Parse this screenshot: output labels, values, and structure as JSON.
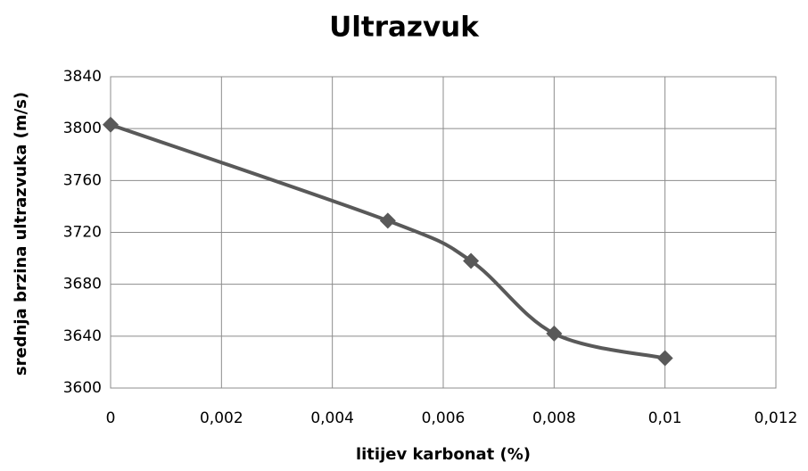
{
  "chart_data": {
    "type": "line",
    "title": "Ultrazvuk",
    "xlabel": "litijev karbonat (%)",
    "ylabel": "srednja brzina ultrazvuka (m/s)",
    "x": [
      0,
      0.005,
      0.0065,
      0.008,
      0.01
    ],
    "series": [
      {
        "name": "srednja brzina ultrazvuka",
        "color": "#595959",
        "values": [
          3803,
          3729,
          3698,
          3642,
          3623
        ]
      }
    ],
    "xlim": [
      0,
      0.012
    ],
    "xticks": [
      0,
      {
        "value": 0.002,
        "label": "0,002"
      },
      {
        "value": 0.004,
        "label": "0,004"
      },
      {
        "value": 0.006,
        "label": "0,006"
      },
      {
        "value": 0.008,
        "label": "0,008"
      },
      {
        "value": 0.01,
        "label": "0,01"
      },
      {
        "value": 0.012,
        "label": "0,012"
      }
    ],
    "ylim": [
      3600,
      3840
    ],
    "yticks": [
      3600,
      3640,
      3680,
      3720,
      3760,
      3800,
      3840
    ],
    "grid": true,
    "smooth": true,
    "marker": "diamond"
  }
}
